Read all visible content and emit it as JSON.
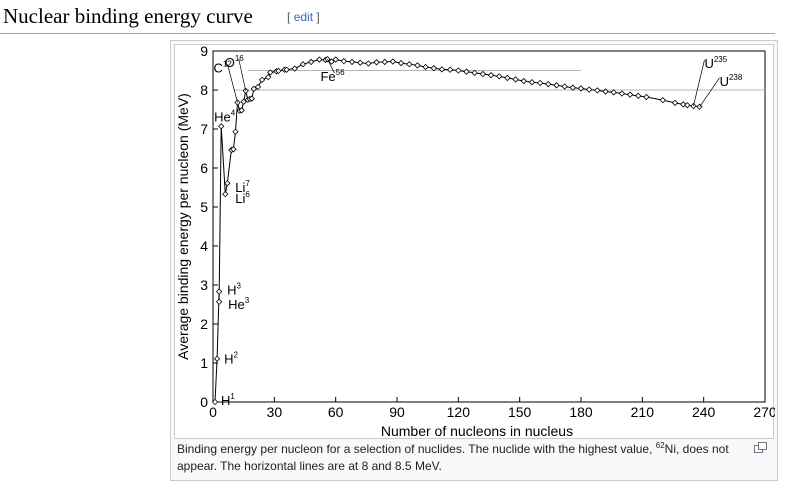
{
  "section": {
    "title": "Nuclear binding energy curve",
    "edit_open": "[",
    "edit_label": "edit",
    "edit_close": "]"
  },
  "figure": {
    "caption_before": "Binding energy per nucleon for a selection of nuclides. The nuclide with the highest value, ",
    "caption_sup": "62",
    "caption_after": "Ni, does not appear. The horizontal lines are at 8 and 8.5 MeV.",
    "magnify_icon": "magnify-clip-icon"
  },
  "chart_data": {
    "type": "line",
    "title": "",
    "xlabel": "Number of nucleons in nucleus",
    "ylabel": "Average binding energy per nucleon (MeV)",
    "xlim": [
      0,
      270
    ],
    "ylim": [
      0,
      9
    ],
    "xticks": [
      0,
      30,
      60,
      90,
      120,
      150,
      180,
      210,
      240,
      270
    ],
    "yticks": [
      0,
      1,
      2,
      3,
      4,
      5,
      6,
      7,
      8,
      9
    ],
    "reference_lines": [
      {
        "y": 8.0,
        "x_range": [
          10,
          270
        ]
      },
      {
        "y": 8.5,
        "x_range": [
          17,
          180
        ]
      }
    ],
    "series": [
      {
        "name": "binding energy per nucleon",
        "points": [
          [
            1,
            0
          ],
          [
            2,
            1.11
          ],
          [
            3,
            2.83
          ],
          [
            3,
            2.57
          ],
          [
            4,
            7.07
          ],
          [
            6,
            5.33
          ],
          [
            7,
            5.61
          ],
          [
            9,
            6.46
          ],
          [
            10,
            6.48
          ],
          [
            11,
            6.93
          ],
          [
            12,
            7.68
          ],
          [
            13,
            7.47
          ],
          [
            14,
            7.48
          ],
          [
            15,
            7.7
          ],
          [
            16,
            7.98
          ],
          [
            17,
            7.75
          ],
          [
            18,
            7.77
          ],
          [
            19,
            7.78
          ],
          [
            20,
            8.03
          ],
          [
            22,
            8.08
          ],
          [
            24,
            8.26
          ],
          [
            27,
            8.33
          ],
          [
            28,
            8.45
          ],
          [
            31,
            8.48
          ],
          [
            32,
            8.49
          ],
          [
            35,
            8.52
          ],
          [
            36,
            8.52
          ],
          [
            40,
            8.55
          ],
          [
            44,
            8.66
          ],
          [
            48,
            8.72
          ],
          [
            52,
            8.78
          ],
          [
            55,
            8.77
          ],
          [
            56,
            8.79
          ],
          [
            58,
            8.73
          ],
          [
            60,
            8.78
          ],
          [
            64,
            8.74
          ],
          [
            68,
            8.72
          ],
          [
            72,
            8.7
          ],
          [
            76,
            8.68
          ],
          [
            80,
            8.71
          ],
          [
            84,
            8.72
          ],
          [
            88,
            8.73
          ],
          [
            92,
            8.69
          ],
          [
            96,
            8.66
          ],
          [
            100,
            8.63
          ],
          [
            104,
            8.59
          ],
          [
            108,
            8.56
          ],
          [
            112,
            8.53
          ],
          [
            116,
            8.52
          ],
          [
            120,
            8.5
          ],
          [
            124,
            8.47
          ],
          [
            128,
            8.44
          ],
          [
            132,
            8.41
          ],
          [
            136,
            8.38
          ],
          [
            140,
            8.35
          ],
          [
            144,
            8.31
          ],
          [
            148,
            8.27
          ],
          [
            152,
            8.23
          ],
          [
            156,
            8.2
          ],
          [
            160,
            8.18
          ],
          [
            164,
            8.15
          ],
          [
            168,
            8.12
          ],
          [
            172,
            8.09
          ],
          [
            176,
            8.06
          ],
          [
            180,
            8.04
          ],
          [
            184,
            8.01
          ],
          [
            188,
            7.99
          ],
          [
            192,
            7.96
          ],
          [
            196,
            7.94
          ],
          [
            200,
            7.91
          ],
          [
            204,
            7.88
          ],
          [
            208,
            7.85
          ],
          [
            212,
            7.82
          ],
          [
            220,
            7.74
          ],
          [
            226,
            7.67
          ],
          [
            230,
            7.63
          ],
          [
            232,
            7.61
          ],
          [
            235,
            7.59
          ],
          [
            238,
            7.57
          ]
        ]
      }
    ],
    "annotations": [
      {
        "base": "H",
        "sup": "1",
        "x": 1,
        "y": 0.0,
        "dx": 6,
        "dy": -2,
        "leader": false
      },
      {
        "base": "H",
        "sup": "2",
        "x": 2,
        "y": 1.11,
        "dx": 7,
        "dy": 0,
        "leader": false
      },
      {
        "base": "H",
        "sup": "3",
        "x": 3,
        "y": 2.83,
        "dx": 8,
        "dy": -2,
        "leader": false
      },
      {
        "base": "He",
        "sup": "3",
        "x": 3,
        "y": 2.57,
        "dx": 9,
        "dy": 2,
        "leader": false
      },
      {
        "base": "He",
        "sup": "4",
        "x": 4,
        "y": 7.07,
        "dx": -7,
        "dy": -10,
        "leader": false
      },
      {
        "base": "Li",
        "sup": "7",
        "x": 7,
        "y": 5.61,
        "dx": 8,
        "dy": 4,
        "leader": false
      },
      {
        "base": "Li",
        "sup": "6",
        "x": 6,
        "y": 5.33,
        "dx": 10,
        "dy": 4,
        "leader": false
      },
      {
        "base": "C",
        "sup": "12",
        "x": 12,
        "y": 7.68,
        "dx": -24,
        "dy": -35,
        "leader": true
      },
      {
        "base": "O",
        "sup": "16",
        "x": 16,
        "y": 7.98,
        "dx": -21,
        "dy": -29,
        "leader": true
      },
      {
        "base": "Fe",
        "sup": "56",
        "x": 56,
        "y": 8.79,
        "dx": -7,
        "dy": 17,
        "leader": true
      },
      {
        "base": "U",
        "sup": "235",
        "x": 235,
        "y": 7.59,
        "dx": 11,
        "dy": -43,
        "leader": true
      },
      {
        "base": "U",
        "sup": "238",
        "x": 238,
        "y": 7.57,
        "dx": 20,
        "dy": -26,
        "leader": true
      }
    ]
  }
}
